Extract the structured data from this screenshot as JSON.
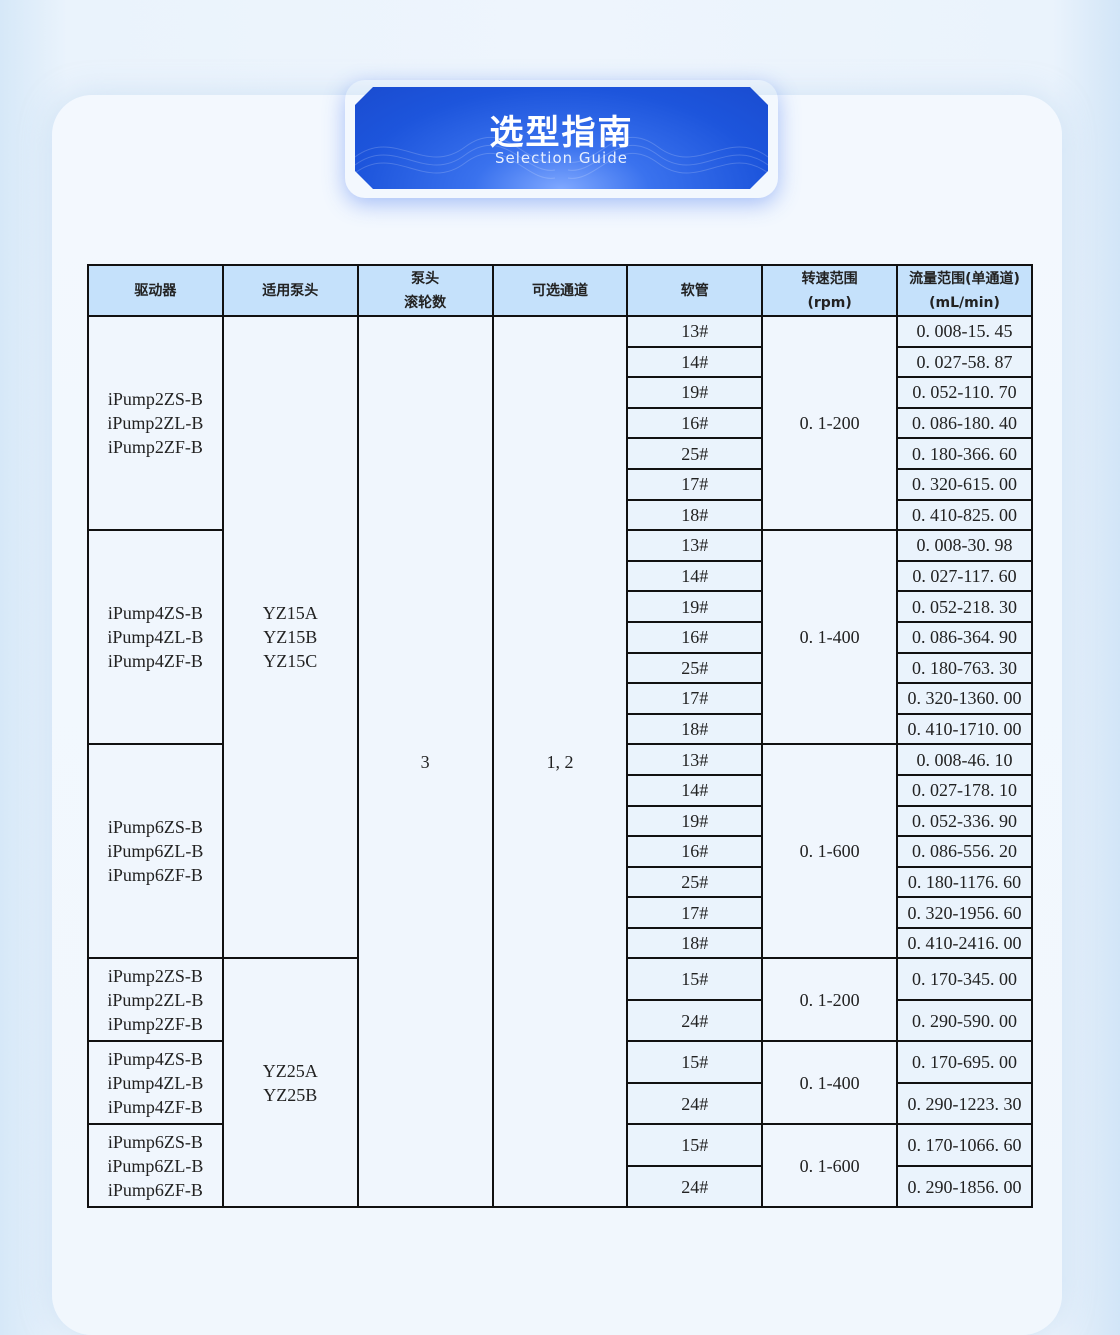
{
  "banner": {
    "title": "选型指南",
    "subtitle": "Selection  Guide"
  },
  "table": {
    "headers": [
      [
        "驱动器"
      ],
      [
        "适用泵头"
      ],
      [
        "泵头",
        "滚轮数"
      ],
      [
        "可选通道"
      ],
      [
        "软管"
      ],
      [
        "转速范围",
        "(rpm)"
      ],
      [
        "流量范围(单通道)",
        "(mL/min)"
      ]
    ],
    "rollers": "3",
    "channels": "1, 2",
    "sections": [
      {
        "pump_heads": [
          "YZ15A",
          "YZ15B",
          "YZ15C"
        ],
        "drivers": [
          {
            "models": [
              "iPump2ZS-B",
              "iPump2ZL-B",
              "iPump2ZF-B"
            ],
            "speed": "0. 1-200",
            "tubes": [
              [
                "13#",
                "0. 008-15. 45"
              ],
              [
                "14#",
                "0. 027-58. 87"
              ],
              [
                "19#",
                "0. 052-110. 70"
              ],
              [
                "16#",
                "0. 086-180. 40"
              ],
              [
                "25#",
                "0. 180-366. 60"
              ],
              [
                "17#",
                "0. 320-615. 00"
              ],
              [
                "18#",
                "0. 410-825. 00"
              ]
            ]
          },
          {
            "models": [
              "iPump4ZS-B",
              "iPump4ZL-B",
              "iPump4ZF-B"
            ],
            "speed": "0. 1-400",
            "tubes": [
              [
                "13#",
                "0. 008-30. 98"
              ],
              [
                "14#",
                "0. 027-117. 60"
              ],
              [
                "19#",
                "0. 052-218. 30"
              ],
              [
                "16#",
                "0. 086-364. 90"
              ],
              [
                "25#",
                "0. 180-763. 30"
              ],
              [
                "17#",
                "0. 320-1360. 00"
              ],
              [
                "18#",
                "0. 410-1710. 00"
              ]
            ]
          },
          {
            "models": [
              "iPump6ZS-B",
              "iPump6ZL-B",
              "iPump6ZF-B"
            ],
            "speed": "0. 1-600",
            "tubes": [
              [
                "13#",
                "0. 008-46. 10"
              ],
              [
                "14#",
                "0. 027-178. 10"
              ],
              [
                "19#",
                "0. 052-336. 90"
              ],
              [
                "16#",
                "0. 086-556. 20"
              ],
              [
                "25#",
                "0. 180-1176. 60"
              ],
              [
                "17#",
                "0. 320-1956. 60"
              ],
              [
                "18#",
                "0. 410-2416. 00"
              ]
            ]
          }
        ]
      },
      {
        "pump_heads": [
          "YZ25A",
          "YZ25B"
        ],
        "drivers": [
          {
            "models": [
              "iPump2ZS-B",
              "iPump2ZL-B",
              "iPump2ZF-B"
            ],
            "speed": "0. 1-200",
            "tubes": [
              [
                "15#",
                "0. 170-345. 00"
              ],
              [
                "24#",
                "0. 290-590. 00"
              ]
            ]
          },
          {
            "models": [
              "iPump4ZS-B",
              "iPump4ZL-B",
              "iPump4ZF-B"
            ],
            "speed": "0. 1-400",
            "tubes": [
              [
                "15#",
                "0. 170-695. 00"
              ],
              [
                "24#",
                "0. 290-1223. 30"
              ]
            ]
          },
          {
            "models": [
              "iPump6ZS-B",
              "iPump6ZL-B",
              "iPump6ZF-B"
            ],
            "speed": "0. 1-600",
            "tubes": [
              [
                "15#",
                "0. 170-1066. 60"
              ],
              [
                "24#",
                "0. 290-1856. 00"
              ]
            ]
          }
        ]
      }
    ]
  }
}
